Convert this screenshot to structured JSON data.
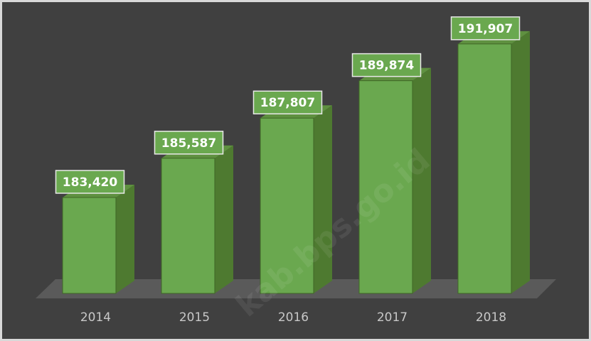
{
  "watermark": "kab.bps.go.id",
  "chart_data": {
    "type": "bar",
    "categories": [
      "2014",
      "2015",
      "2016",
      "2017",
      "2018"
    ],
    "values": [
      183420,
      185587,
      187807,
      189874,
      191907
    ],
    "value_labels": [
      "183,420",
      "185,587",
      "187,807",
      "189,874",
      "191,907"
    ],
    "color": "#6aa84f",
    "ylim": [
      178000,
      193000
    ]
  }
}
